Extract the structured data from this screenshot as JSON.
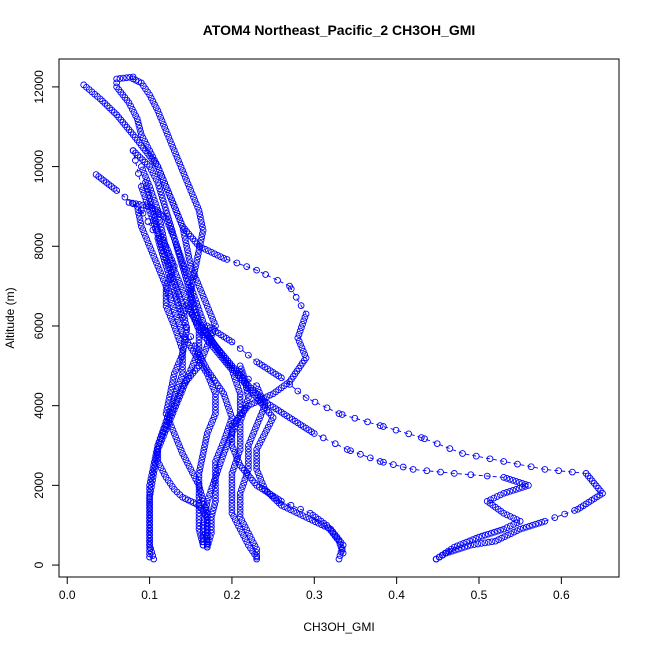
{
  "chart_data": {
    "type": "scatter",
    "title": "ATOM4 Northeast_Pacific_2 CH3OH_GMI",
    "xlabel": "CH3OH_GMI",
    "ylabel": "Altitude (m)",
    "xlim": [
      -0.01,
      0.67
    ],
    "ylim": [
      -300,
      12700
    ],
    "xticks": [
      0.0,
      0.1,
      0.2,
      0.3,
      0.4,
      0.5,
      0.6
    ],
    "xtick_labels": [
      "0.0",
      "0.1",
      "0.2",
      "0.3",
      "0.4",
      "0.5",
      "0.6"
    ],
    "yticks": [
      0,
      2000,
      4000,
      6000,
      8000,
      10000,
      12000
    ],
    "ytick_labels": [
      "0",
      "2000",
      "4000",
      "6000",
      "8000",
      "10000",
      "12000"
    ],
    "grid": false,
    "marker": "open-circle",
    "color": "#0000ff",
    "profiles": [
      {
        "points": [
          [
            0.448,
            150
          ],
          [
            0.46,
            300
          ],
          [
            0.49,
            500
          ],
          [
            0.52,
            600
          ],
          [
            0.55,
            900
          ],
          [
            0.58,
            1100
          ],
          [
            0.62,
            1400
          ],
          [
            0.65,
            1800
          ],
          [
            0.63,
            2300
          ],
          [
            0.58,
            2400
          ],
          [
            0.53,
            2600
          ],
          [
            0.48,
            2800
          ],
          [
            0.43,
            3200
          ],
          [
            0.38,
            3500
          ],
          [
            0.33,
            3800
          ],
          [
            0.29,
            4200
          ],
          [
            0.26,
            4700
          ],
          [
            0.23,
            5100
          ],
          [
            0.2,
            5600
          ],
          [
            0.17,
            6000
          ]
        ]
      },
      {
        "points": [
          [
            0.448,
            150
          ],
          [
            0.47,
            450
          ],
          [
            0.5,
            700
          ],
          [
            0.53,
            900
          ],
          [
            0.55,
            1100
          ],
          [
            0.53,
            1300
          ],
          [
            0.51,
            1600
          ],
          [
            0.53,
            1800
          ],
          [
            0.56,
            2000
          ],
          [
            0.53,
            2200
          ],
          [
            0.47,
            2300
          ],
          [
            0.42,
            2400
          ],
          [
            0.38,
            2600
          ],
          [
            0.34,
            2900
          ],
          [
            0.3,
            3300
          ],
          [
            0.27,
            3700
          ],
          [
            0.24,
            4100
          ],
          [
            0.22,
            4500
          ],
          [
            0.2,
            5000
          ],
          [
            0.18,
            5500
          ],
          [
            0.16,
            6000
          ],
          [
            0.145,
            6500
          ]
        ]
      },
      {
        "points": [
          [
            0.335,
            300
          ],
          [
            0.33,
            600
          ],
          [
            0.315,
            1000
          ],
          [
            0.295,
            1300
          ],
          [
            0.26,
            1600
          ],
          [
            0.23,
            2000
          ],
          [
            0.21,
            2500
          ],
          [
            0.2,
            3000
          ],
          [
            0.2,
            3500
          ],
          [
            0.22,
            4000
          ],
          [
            0.25,
            4300
          ],
          [
            0.27,
            4600
          ],
          [
            0.29,
            5200
          ],
          [
            0.28,
            5700
          ],
          [
            0.29,
            6300
          ],
          [
            0.27,
            7000
          ],
          [
            0.23,
            7400
          ],
          [
            0.19,
            7700
          ],
          [
            0.16,
            8000
          ],
          [
            0.14,
            8500
          ],
          [
            0.13,
            9000
          ],
          [
            0.12,
            9500
          ],
          [
            0.11,
            10000
          ],
          [
            0.095,
            10400
          ],
          [
            0.08,
            10800
          ],
          [
            0.06,
            11300
          ],
          [
            0.04,
            11700
          ],
          [
            0.02,
            12050
          ]
        ]
      },
      {
        "points": [
          [
            0.33,
            150
          ],
          [
            0.335,
            500
          ],
          [
            0.32,
            900
          ],
          [
            0.29,
            1200
          ],
          [
            0.26,
            1500
          ],
          [
            0.24,
            1900
          ],
          [
            0.23,
            2400
          ],
          [
            0.23,
            2900
          ],
          [
            0.24,
            3300
          ],
          [
            0.25,
            3700
          ],
          [
            0.23,
            4200
          ],
          [
            0.21,
            4700
          ],
          [
            0.19,
            5200
          ],
          [
            0.17,
            5800
          ],
          [
            0.16,
            6400
          ],
          [
            0.15,
            7000
          ],
          [
            0.14,
            7600
          ],
          [
            0.13,
            8200
          ],
          [
            0.12,
            8700
          ],
          [
            0.1,
            9000
          ],
          [
            0.075,
            9100
          ]
        ]
      },
      {
        "points": [
          [
            0.23,
            150
          ],
          [
            0.23,
            400
          ],
          [
            0.22,
            800
          ],
          [
            0.21,
            1200
          ],
          [
            0.21,
            1800
          ],
          [
            0.22,
            2400
          ],
          [
            0.22,
            3000
          ],
          [
            0.23,
            3500
          ],
          [
            0.24,
            4000
          ],
          [
            0.23,
            4500
          ],
          [
            0.2,
            5000
          ],
          [
            0.18,
            5500
          ],
          [
            0.16,
            6100
          ],
          [
            0.15,
            6800
          ],
          [
            0.14,
            7500
          ],
          [
            0.13,
            8200
          ],
          [
            0.12,
            8900
          ],
          [
            0.11,
            9600
          ],
          [
            0.1,
            10000
          ],
          [
            0.08,
            10400
          ]
        ]
      },
      {
        "points": [
          [
            0.23,
            200
          ],
          [
            0.22,
            500
          ],
          [
            0.21,
            900
          ],
          [
            0.2,
            1300
          ],
          [
            0.2,
            1800
          ],
          [
            0.2,
            2300
          ],
          [
            0.21,
            2900
          ],
          [
            0.21,
            3600
          ],
          [
            0.22,
            4200
          ],
          [
            0.215,
            4700
          ],
          [
            0.21,
            5000
          ]
        ]
      },
      {
        "points": [
          [
            0.17,
            450
          ],
          [
            0.175,
            800
          ],
          [
            0.175,
            1200
          ],
          [
            0.18,
            1600
          ],
          [
            0.18,
            2100
          ],
          [
            0.18,
            2600
          ],
          [
            0.19,
            3100
          ],
          [
            0.2,
            3700
          ],
          [
            0.19,
            4300
          ],
          [
            0.17,
            4900
          ],
          [
            0.155,
            5500
          ],
          [
            0.14,
            6200
          ],
          [
            0.13,
            6900
          ],
          [
            0.12,
            7500
          ],
          [
            0.11,
            8200
          ],
          [
            0.09,
            8900
          ],
          [
            0.06,
            9400
          ],
          [
            0.035,
            9800
          ]
        ]
      },
      {
        "points": [
          [
            0.165,
            500
          ],
          [
            0.16,
            900
          ],
          [
            0.16,
            1300
          ],
          [
            0.16,
            1800
          ],
          [
            0.16,
            2300
          ],
          [
            0.165,
            2800
          ],
          [
            0.17,
            3300
          ],
          [
            0.18,
            3800
          ],
          [
            0.18,
            4300
          ],
          [
            0.17,
            4800
          ],
          [
            0.155,
            5300
          ],
          [
            0.14,
            5800
          ],
          [
            0.13,
            6400
          ],
          [
            0.12,
            7000
          ],
          [
            0.11,
            7500
          ],
          [
            0.1,
            8000
          ],
          [
            0.09,
            8500
          ],
          [
            0.085,
            9000
          ]
        ]
      },
      {
        "points": [
          [
            0.17,
            500
          ],
          [
            0.17,
            900
          ],
          [
            0.17,
            1300
          ],
          [
            0.165,
            1600
          ],
          [
            0.16,
            2000
          ],
          [
            0.15,
            2400
          ],
          [
            0.14,
            2800
          ],
          [
            0.13,
            3300
          ],
          [
            0.12,
            3800
          ],
          [
            0.125,
            4300
          ],
          [
            0.13,
            4800
          ],
          [
            0.14,
            5300
          ],
          [
            0.145,
            5900
          ],
          [
            0.14,
            6500
          ],
          [
            0.13,
            7100
          ],
          [
            0.12,
            7700
          ],
          [
            0.11,
            8300
          ],
          [
            0.1,
            8900
          ],
          [
            0.09,
            9500
          ],
          [
            0.08,
            10400
          ]
        ]
      },
      {
        "points": [
          [
            0.105,
            150
          ],
          [
            0.1,
            500
          ],
          [
            0.1,
            1000
          ],
          [
            0.1,
            1500
          ],
          [
            0.1,
            2000
          ],
          [
            0.105,
            2500
          ],
          [
            0.11,
            3000
          ],
          [
            0.12,
            3600
          ],
          [
            0.13,
            4200
          ],
          [
            0.14,
            4800
          ],
          [
            0.14,
            5400
          ],
          [
            0.13,
            6000
          ],
          [
            0.12,
            6500
          ],
          [
            0.12,
            7000
          ],
          [
            0.13,
            7500
          ],
          [
            0.12,
            8000
          ],
          [
            0.11,
            8400
          ],
          [
            0.105,
            8800
          ],
          [
            0.1,
            9200
          ],
          [
            0.095,
            9600
          ]
        ]
      },
      {
        "points": [
          [
            0.1,
            200
          ],
          [
            0.1,
            600
          ],
          [
            0.1,
            1100
          ],
          [
            0.1,
            1700
          ],
          [
            0.105,
            2300
          ],
          [
            0.11,
            2900
          ],
          [
            0.12,
            3400
          ],
          [
            0.13,
            3900
          ],
          [
            0.14,
            4400
          ],
          [
            0.15,
            4900
          ],
          [
            0.16,
            5400
          ],
          [
            0.16,
            5900
          ],
          [
            0.15,
            6400
          ],
          [
            0.14,
            6900
          ],
          [
            0.13,
            7400
          ],
          [
            0.12,
            7900
          ],
          [
            0.115,
            8400
          ],
          [
            0.11,
            8900
          ],
          [
            0.1,
            9500
          ],
          [
            0.09,
            10000
          ]
        ]
      },
      {
        "points": [
          [
            0.17,
            450
          ],
          [
            0.17,
            800
          ],
          [
            0.17,
            1200
          ],
          [
            0.16,
            1500
          ],
          [
            0.15,
            1600
          ],
          [
            0.14,
            1700
          ],
          [
            0.13,
            1900
          ],
          [
            0.12,
            2200
          ],
          [
            0.11,
            2600
          ],
          [
            0.11,
            3000
          ],
          [
            0.12,
            3500
          ],
          [
            0.13,
            4000
          ],
          [
            0.14,
            4500
          ],
          [
            0.16,
            5000
          ],
          [
            0.17,
            5500
          ],
          [
            0.18,
            6000
          ],
          [
            0.17,
            6500
          ],
          [
            0.16,
            7000
          ],
          [
            0.15,
            7500
          ],
          [
            0.145,
            8000
          ],
          [
            0.14,
            8500
          ],
          [
            0.13,
            9000
          ],
          [
            0.12,
            9500
          ],
          [
            0.11,
            10000
          ],
          [
            0.1,
            10400
          ],
          [
            0.09,
            10800
          ],
          [
            0.085,
            11200
          ],
          [
            0.075,
            11600
          ],
          [
            0.06,
            12000
          ],
          [
            0.06,
            12200
          ],
          [
            0.08,
            12250
          ]
        ]
      },
      {
        "points": [
          [
            0.165,
            500
          ],
          [
            0.165,
            1000
          ],
          [
            0.17,
            1600
          ],
          [
            0.18,
            2200
          ],
          [
            0.19,
            2800
          ],
          [
            0.2,
            3300
          ],
          [
            0.21,
            3800
          ],
          [
            0.21,
            4300
          ],
          [
            0.2,
            4900
          ],
          [
            0.18,
            5400
          ],
          [
            0.16,
            5900
          ],
          [
            0.15,
            6400
          ],
          [
            0.15,
            6900
          ],
          [
            0.155,
            7400
          ],
          [
            0.16,
            7900
          ],
          [
            0.165,
            8400
          ],
          [
            0.16,
            8900
          ],
          [
            0.15,
            9400
          ],
          [
            0.14,
            9900
          ],
          [
            0.13,
            10400
          ],
          [
            0.12,
            10900
          ],
          [
            0.11,
            11400
          ],
          [
            0.1,
            11800
          ],
          [
            0.09,
            12100
          ],
          [
            0.08,
            12200
          ]
        ]
      }
    ]
  }
}
